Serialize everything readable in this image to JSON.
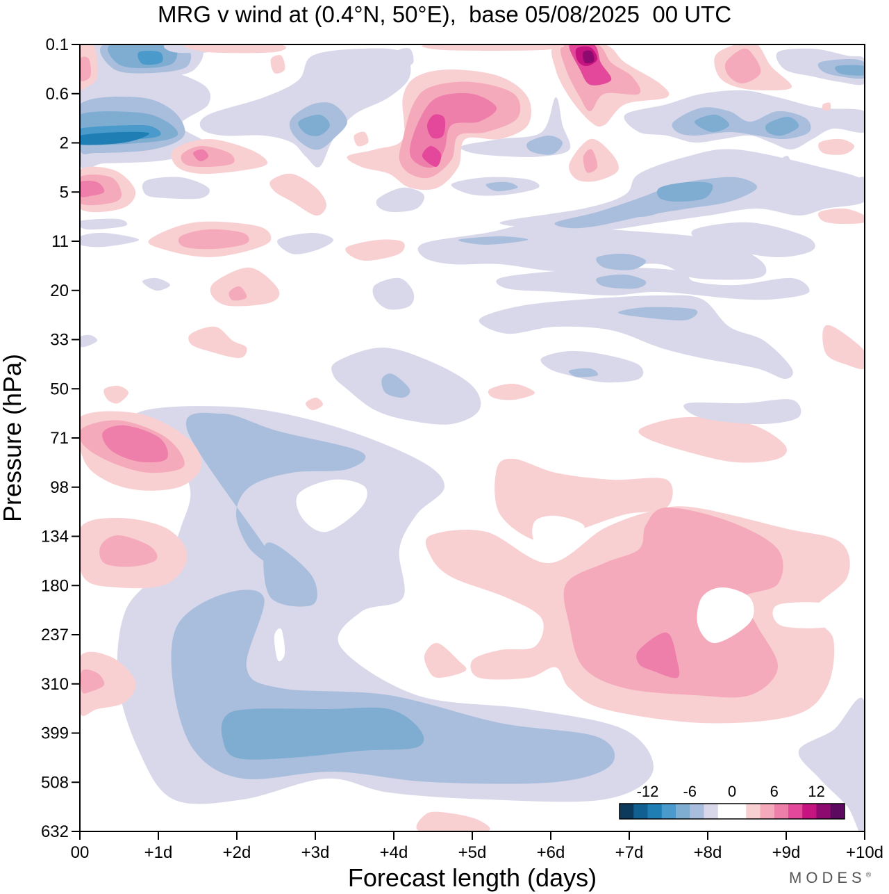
{
  "title": "MRG v wind at (0.4°N, 50°E),  base 05/08/2025  00 UTC",
  "brand": "MODES",
  "brand_mark": "®",
  "chart_data": {
    "type": "heatmap",
    "title": "MRG v wind at (0.4°N, 50°E),  base 05/08/2025  00 UTC",
    "xlabel": "Forecast length (days)",
    "ylabel": "Pressure (hPa)",
    "x_ticks": [
      "00",
      "+1d",
      "+2d",
      "+3d",
      "+4d",
      "+5d",
      "+6d",
      "+7d",
      "+8d",
      "+9d",
      "+10d"
    ],
    "xlim": [
      0,
      10
    ],
    "y_ticks": [
      "0.1",
      "0.6",
      "2",
      "5",
      "11",
      "20",
      "33",
      "50",
      "71",
      "98",
      "134",
      "180",
      "237",
      "310",
      "399",
      "508",
      "632"
    ],
    "y_scale": "log (pressure levels, top 0.1 hPa to bottom 632 hPa)",
    "legend": {
      "placement": "bottom-right",
      "labels": [
        "-12",
        "-6",
        "0",
        "6",
        "12"
      ],
      "bins": [
        -16,
        -14,
        -12,
        -10,
        -8,
        -6,
        -4,
        -2,
        0,
        2,
        4,
        6,
        8,
        10,
        12,
        14,
        16
      ],
      "colors": [
        "#0b3a5c",
        "#125f92",
        "#1f7fb5",
        "#4a9bcb",
        "#7fadd2",
        "#a9bedc",
        "#d8d8ea",
        "#ffffff",
        "#ffffff",
        "#f9d0d2",
        "#f5aabb",
        "#ee7fab",
        "#e4489a",
        "#c5137f",
        "#8d0a6e",
        "#5c0a5f"
      ]
    },
    "features": [
      {
        "value": -12,
        "day_start": 0.0,
        "day_end": 1.0,
        "level_top": "1.5",
        "level_bottom": "2.5",
        "sign": "negative"
      },
      {
        "value": -8,
        "day_start": 0.5,
        "day_end": 1.2,
        "level_top": "0.1",
        "level_bottom": "0.3",
        "sign": "negative"
      },
      {
        "value": -6,
        "day_start": 3.0,
        "day_end": 3.3,
        "level_top": "1",
        "level_bottom": "2",
        "sign": "negative"
      },
      {
        "value": 12,
        "day_start": 4.3,
        "day_end": 4.7,
        "level_top": "1",
        "level_bottom": "3",
        "sign": "positive"
      },
      {
        "value": 14,
        "day_start": 6.3,
        "day_end": 6.7,
        "level_top": "0.1",
        "level_bottom": "0.3",
        "sign": "positive"
      },
      {
        "value": -6,
        "day_start": 7.8,
        "day_end": 9.2,
        "level_top": "1",
        "level_bottom": "2",
        "sign": "negative"
      },
      {
        "value": -6,
        "day_start": 7.5,
        "day_end": 8.3,
        "level_top": "4",
        "level_bottom": "6",
        "sign": "negative"
      },
      {
        "value": 8,
        "day_start": 0.3,
        "day_end": 1.0,
        "level_top": "65",
        "level_bottom": "80",
        "sign": "positive"
      },
      {
        "value": -6,
        "day_start": 1.8,
        "day_end": 4.3,
        "level_top": "360",
        "level_bottom": "440",
        "sign": "negative"
      },
      {
        "value": -4,
        "day_start": 1.4,
        "day_end": 6.8,
        "level_top": "200",
        "level_bottom": "508",
        "sign": "negative"
      },
      {
        "value": 4,
        "day_start": 6.2,
        "day_end": 9.0,
        "level_top": "120",
        "level_bottom": "370",
        "sign": "positive"
      },
      {
        "value": 8,
        "day_start": 7.0,
        "day_end": 7.6,
        "level_top": "250",
        "level_bottom": "300",
        "sign": "positive"
      },
      {
        "value": 6,
        "day_start": 4.3,
        "day_end": 5.6,
        "level_top": "0.6",
        "level_bottom": "1.2",
        "sign": "positive"
      },
      {
        "value": 4,
        "day_start": 1.3,
        "day_end": 2.2,
        "level_top": "9",
        "level_bottom": "13",
        "sign": "positive"
      }
    ]
  }
}
